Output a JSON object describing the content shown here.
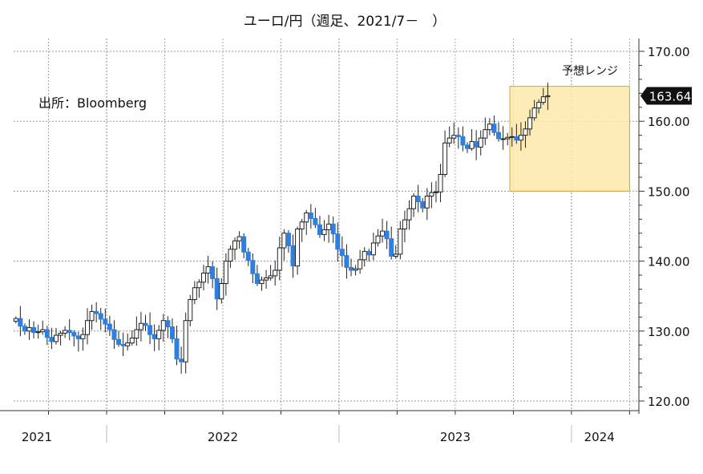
{
  "chart_data": {
    "type": "candlestick",
    "title": "ユーロ/円（週足、2021/7－　）",
    "source_note": "出所：Bloomberg",
    "forecast_label": "予想レンジ",
    "last_value_label": "163.64",
    "ylim": [
      119.5,
      172.5
    ],
    "y_ticks": [
      120,
      130,
      140,
      150,
      160,
      170
    ],
    "y_tick_labels": [
      "120.00",
      "130.00",
      "140.00",
      "150.00",
      "160.00",
      "170.00"
    ],
    "x_range": [
      2021.6,
      2024.29
    ],
    "year_boundaries": [
      2022.0,
      2023.0,
      2024.0
    ],
    "x_tick_labels": [
      {
        "label": "2021",
        "x": 2021.7
      },
      {
        "label": "2022",
        "x": 2022.5
      },
      {
        "label": "2023",
        "x": 2023.5
      },
      {
        "label": "2024",
        "x": 2024.12
      }
    ],
    "forecast_range": {
      "x0": 2023.735,
      "x1": 2024.25,
      "y0": 150.0,
      "y1": 165.0
    },
    "closes": [
      131.8,
      130.7,
      130.0,
      130.5,
      129.8,
      129.9,
      130.2,
      129.1,
      128.5,
      129.4,
      129.7,
      130.1,
      129.8,
      129.3,
      128.9,
      129.5,
      131.5,
      132.8,
      132.5,
      131.7,
      131.0,
      130.2,
      128.8,
      128.1,
      127.9,
      128.3,
      129.0,
      130.2,
      131.1,
      130.8,
      129.5,
      128.9,
      130.1,
      131.5,
      130.6,
      128.9,
      126.0,
      125.6,
      131.5,
      134.5,
      136.2,
      137.0,
      138.3,
      139.2,
      137.5,
      134.6,
      136.8,
      140.0,
      141.7,
      142.9,
      143.5,
      141.3,
      140.1,
      138.2,
      136.8,
      137.3,
      137.6,
      137.9,
      138.7,
      141.9,
      144.0,
      142.2,
      139.3,
      144.6,
      145.6,
      146.9,
      146.1,
      145.2,
      143.8,
      144.5,
      145.3,
      143.9,
      141.7,
      140.8,
      139.1,
      138.7,
      138.9,
      140.2,
      141.4,
      140.9,
      142.6,
      143.6,
      144.3,
      143.2,
      140.7,
      141.0,
      144.6,
      145.9,
      147.5,
      149.3,
      148.5,
      147.6,
      149.3,
      149.8,
      149.9,
      152.4,
      156.9,
      157.6,
      158.0,
      157.8,
      156.6,
      156.1,
      157.1,
      156.3,
      157.6,
      158.8,
      159.6,
      158.4,
      157.5,
      157.5,
      157.7,
      157.8,
      157.3,
      158.0,
      158.9,
      160.5,
      161.9,
      162.7,
      163.5,
      163.64
    ],
    "series": [
      {
        "name": "",
        "values": "closes"
      }
    ]
  }
}
